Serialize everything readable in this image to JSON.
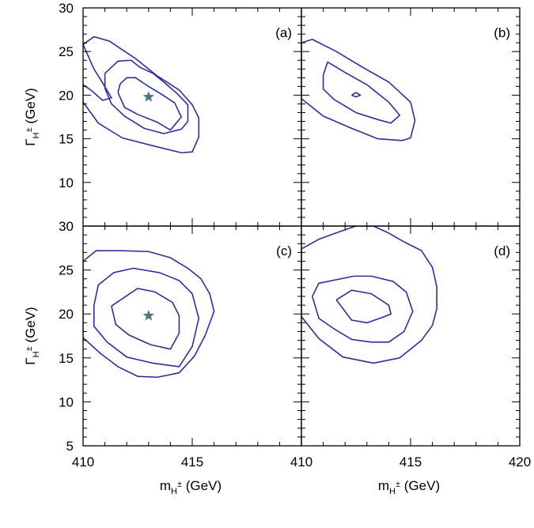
{
  "chart_data": {
    "type": "contour",
    "xlabel": {
      "main": "m",
      "sub": "H",
      "sup": "±",
      "unit": "(GeV)"
    },
    "ylabel": {
      "main": "Γ",
      "sub": "H",
      "sup": "±",
      "unit": "(GeV)"
    },
    "xlim": [
      410,
      420
    ],
    "xticks": [
      {
        "value": 410,
        "label": "410"
      },
      {
        "value": 415,
        "label": "415"
      },
      {
        "value": 420,
        "label": "420"
      }
    ],
    "top_ylim": [
      5,
      30
    ],
    "top_yticks": [
      {
        "value": 10,
        "label": "10"
      },
      {
        "value": 15,
        "label": "15"
      },
      {
        "value": 20,
        "label": "20"
      },
      {
        "value": 25,
        "label": "25"
      },
      {
        "value": 30,
        "label": "30"
      }
    ],
    "bottom_ylim": [
      5,
      30
    ],
    "bottom_yticks": [
      {
        "value": 5,
        "label": "5"
      },
      {
        "value": 10,
        "label": "10"
      },
      {
        "value": 15,
        "label": "15"
      },
      {
        "value": 20,
        "label": "20"
      },
      {
        "value": 25,
        "label": "25"
      },
      {
        "value": 30,
        "label": "30"
      }
    ],
    "contour_color": "#2e2e9e",
    "star_color": "#4a7a80",
    "panels": [
      {
        "id": "a",
        "label": "(a)",
        "row": 0,
        "col": 0,
        "star": [
          413.0,
          19.8
        ],
        "contours": [
          [
            [
              410.0,
              25.8
            ],
            [
              410.5,
              26.7
            ],
            [
              411.2,
              26.2
            ],
            [
              412.4,
              24.2
            ],
            [
              413.4,
              22.2
            ],
            [
              414.4,
              20.6
            ],
            [
              415.0,
              18.9
            ],
            [
              415.3,
              17.4
            ],
            [
              415.3,
              15.2
            ],
            [
              415.0,
              13.5
            ],
            [
              414.5,
              13.4
            ],
            [
              413.2,
              14.2
            ],
            [
              411.8,
              15.1
            ],
            [
              410.7,
              16.8
            ],
            [
              410.0,
              19.2
            ],
            [
              410.0,
              21.2
            ],
            [
              410.4,
              20.5
            ],
            [
              410.9,
              19.4
            ],
            [
              411.3,
              19.7
            ],
            [
              410.8,
              21.8
            ],
            [
              410.5,
              23.0
            ],
            [
              410.0,
              25.8
            ]
          ],
          [
            [
              411.0,
              22.5
            ],
            [
              411.6,
              23.9
            ],
            [
              412.2,
              24.0
            ],
            [
              412.6,
              23.2
            ],
            [
              413.2,
              22.5
            ],
            [
              413.7,
              21.5
            ],
            [
              414.3,
              20.2
            ],
            [
              414.8,
              18.9
            ],
            [
              414.8,
              17.0
            ],
            [
              414.5,
              16.1
            ],
            [
              413.7,
              15.6
            ],
            [
              412.8,
              16.2
            ],
            [
              411.9,
              17.6
            ],
            [
              411.3,
              19.0
            ],
            [
              411.0,
              20.8
            ],
            [
              411.0,
              22.5
            ]
          ],
          [
            [
              411.6,
              20.3
            ],
            [
              411.7,
              21.3
            ],
            [
              412.0,
              22.0
            ],
            [
              412.4,
              22.0
            ],
            [
              413.0,
              21.0
            ],
            [
              413.6,
              20.1
            ],
            [
              414.2,
              19.1
            ],
            [
              414.5,
              17.5
            ],
            [
              414.0,
              16.0
            ],
            [
              413.4,
              16.9
            ],
            [
              412.5,
              17.8
            ],
            [
              411.9,
              18.6
            ],
            [
              411.6,
              20.3
            ]
          ]
        ]
      },
      {
        "id": "b",
        "label": "(b)",
        "row": 0,
        "col": 1,
        "star": null,
        "contours": [
          [
            [
              410.0,
              26.0
            ],
            [
              410.5,
              26.4
            ],
            [
              411.6,
              25.0
            ],
            [
              412.8,
              23.2
            ],
            [
              414.0,
              21.5
            ],
            [
              415.0,
              19.2
            ],
            [
              415.2,
              17.1
            ],
            [
              415.0,
              15.1
            ],
            [
              414.6,
              14.8
            ],
            [
              413.5,
              15.0
            ],
            [
              412.3,
              16.2
            ],
            [
              411.0,
              17.6
            ],
            [
              410.0,
              19.6
            ],
            [
              410.0,
              26.0
            ]
          ],
          [
            [
              411.0,
              22.3
            ],
            [
              411.2,
              23.8
            ],
            [
              412.0,
              22.6
            ],
            [
              413.0,
              21.2
            ],
            [
              414.0,
              19.2
            ],
            [
              414.5,
              17.7
            ],
            [
              414.1,
              16.8
            ],
            [
              413.5,
              17.2
            ],
            [
              412.5,
              18.0
            ],
            [
              411.5,
              19.5
            ],
            [
              411.0,
              20.7
            ],
            [
              411.0,
              22.3
            ]
          ],
          [
            [
              412.3,
              20.0
            ],
            [
              412.5,
              20.3
            ],
            [
              412.7,
              20.0
            ],
            [
              412.5,
              19.8
            ],
            [
              412.3,
              20.0
            ]
          ]
        ]
      },
      {
        "id": "c",
        "label": "(c)",
        "row": 1,
        "col": 0,
        "star": [
          413.0,
          19.8
        ],
        "contours": [
          [
            [
              410.0,
              26.0
            ],
            [
              410.6,
              27.2
            ],
            [
              411.8,
              27.2
            ],
            [
              413.0,
              27.1
            ],
            [
              414.0,
              26.4
            ],
            [
              414.8,
              25.2
            ],
            [
              415.4,
              24.0
            ],
            [
              415.8,
              22.3
            ],
            [
              416.0,
              20.3
            ],
            [
              415.6,
              17.6
            ],
            [
              415.1,
              15.2
            ],
            [
              414.4,
              13.3
            ],
            [
              413.4,
              12.8
            ],
            [
              412.5,
              12.9
            ],
            [
              411.6,
              14.0
            ],
            [
              410.8,
              15.5
            ],
            [
              410.0,
              17.3
            ],
            [
              410.0,
              26.0
            ]
          ],
          [
            [
              410.5,
              21.0
            ],
            [
              410.7,
              23.3
            ],
            [
              411.4,
              24.7
            ],
            [
              412.3,
              25.2
            ],
            [
              413.5,
              24.7
            ],
            [
              414.4,
              23.8
            ],
            [
              415.0,
              22.3
            ],
            [
              415.3,
              19.5
            ],
            [
              415.0,
              16.3
            ],
            [
              414.4,
              14.0
            ],
            [
              413.2,
              14.4
            ],
            [
              412.0,
              15.1
            ],
            [
              411.1,
              16.8
            ],
            [
              410.5,
              18.6
            ],
            [
              410.5,
              21.0
            ]
          ],
          [
            [
              411.3,
              20.9
            ],
            [
              411.9,
              21.9
            ],
            [
              412.5,
              22.9
            ],
            [
              413.3,
              22.5
            ],
            [
              414.1,
              21.3
            ],
            [
              414.4,
              19.8
            ],
            [
              414.4,
              17.8
            ],
            [
              414.0,
              16.0
            ],
            [
              413.1,
              16.5
            ],
            [
              412.1,
              17.6
            ],
            [
              411.5,
              18.8
            ],
            [
              411.3,
              20.9
            ]
          ]
        ]
      },
      {
        "id": "d",
        "label": "(d)",
        "row": 1,
        "col": 1,
        "star": null,
        "contours": [
          [
            [
              410.0,
              27.4
            ],
            [
              410.8,
              28.5
            ],
            [
              411.8,
              29.4
            ],
            [
              412.5,
              30.0
            ],
            [
              413.3,
              30.0
            ],
            [
              414.0,
              29.2
            ],
            [
              414.7,
              28.2
            ],
            [
              415.5,
              27.2
            ],
            [
              416.0,
              25.3
            ],
            [
              416.2,
              23.1
            ],
            [
              416.2,
              20.6
            ],
            [
              416.0,
              18.7
            ],
            [
              415.5,
              17.0
            ],
            [
              414.5,
              15.0
            ],
            [
              413.3,
              14.4
            ],
            [
              411.9,
              15.1
            ],
            [
              410.8,
              17.2
            ],
            [
              410.0,
              19.7
            ],
            [
              410.0,
              27.4
            ]
          ],
          [
            [
              410.5,
              22.0
            ],
            [
              410.8,
              23.5
            ],
            [
              412.4,
              24.3
            ],
            [
              413.2,
              24.3
            ],
            [
              414.2,
              23.7
            ],
            [
              414.8,
              22.5
            ],
            [
              415.1,
              20.3
            ],
            [
              414.7,
              18.0
            ],
            [
              414.0,
              16.8
            ],
            [
              413.2,
              16.8
            ],
            [
              412.3,
              17.1
            ],
            [
              411.5,
              18.3
            ],
            [
              410.8,
              19.5
            ],
            [
              410.5,
              22.0
            ]
          ],
          [
            [
              411.6,
              21.6
            ],
            [
              412.3,
              22.7
            ],
            [
              413.2,
              22.3
            ],
            [
              414.0,
              21.0
            ],
            [
              414.1,
              20.0
            ],
            [
              413.7,
              19.6
            ],
            [
              413.0,
              19.0
            ],
            [
              412.3,
              19.3
            ],
            [
              411.6,
              21.6
            ]
          ]
        ]
      }
    ]
  }
}
